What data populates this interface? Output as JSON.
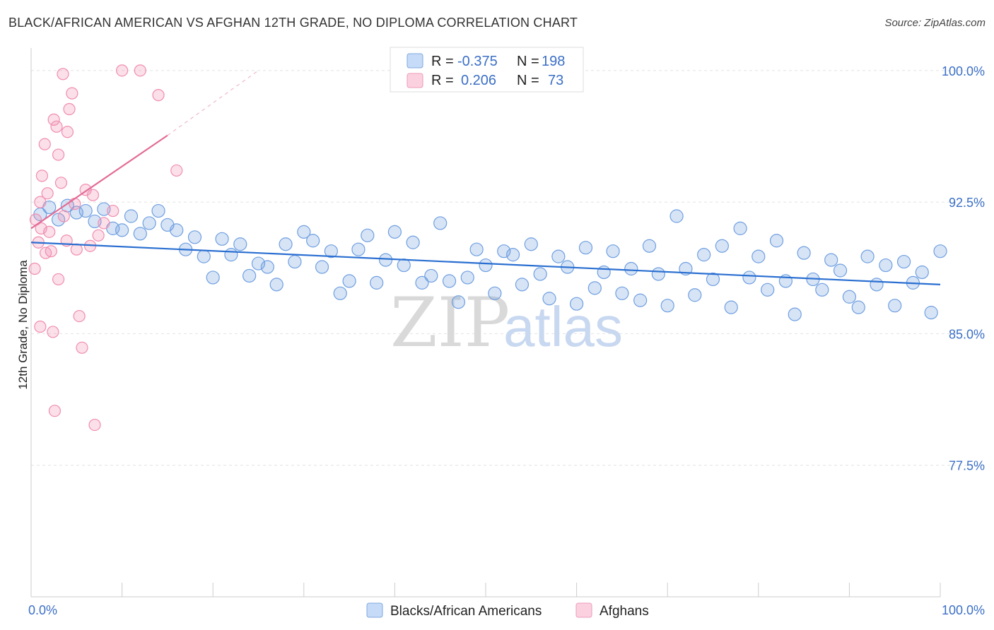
{
  "title": "BLACK/AFRICAN AMERICAN VS AFGHAN 12TH GRADE, NO DIPLOMA CORRELATION CHART",
  "source": "Source: ZipAtlas.com",
  "watermark": {
    "part1": "ZIP",
    "part2": "atlas"
  },
  "colors": {
    "blue": "#6f9fe0",
    "blue_line": "#2a6fd1",
    "pink": "#f08db0",
    "pink_line": "#e36b95"
  },
  "legend": {
    "rows": [
      {
        "r_label": "R =",
        "r_value": "-0.375",
        "n_label": "N =",
        "n_value": "198"
      },
      {
        "r_label": "R =",
        "r_value": "0.206",
        "n_label": "N =",
        "n_value": "73"
      }
    ]
  },
  "bottom_legend": [
    "Blacks/African Americans",
    "Afghans"
  ],
  "chart_data": {
    "type": "scatter",
    "title": "BLACK/AFRICAN AMERICAN VS AFGHAN 12TH GRADE, NO DIPLOMA CORRELATION CHART",
    "xlabel": "",
    "ylabel": "12th Grade, No Diploma",
    "xlim": [
      0,
      100
    ],
    "ylim": [
      70,
      101
    ],
    "x_tick_labels": [
      "0.0%",
      "100.0%"
    ],
    "y_ticks": [
      77.5,
      85.0,
      92.5,
      100.0
    ],
    "y_tick_labels": [
      "77.5%",
      "85.0%",
      "92.5%",
      "100.0%"
    ],
    "series": [
      {
        "name": "Blacks/African Americans",
        "r": -0.375,
        "n": 198,
        "trend": {
          "x": [
            0,
            100
          ],
          "y": [
            90.2,
            87.8
          ]
        },
        "points": [
          [
            1,
            91.8
          ],
          [
            2,
            92.2
          ],
          [
            3,
            91.5
          ],
          [
            4,
            92.3
          ],
          [
            5,
            91.9
          ],
          [
            6,
            92.0
          ],
          [
            7,
            91.4
          ],
          [
            8,
            92.1
          ],
          [
            9,
            91.0
          ],
          [
            10,
            90.9
          ],
          [
            11,
            91.7
          ],
          [
            12,
            90.7
          ],
          [
            13,
            91.3
          ],
          [
            14,
            92.0
          ],
          [
            15,
            91.2
          ],
          [
            16,
            90.9
          ],
          [
            17,
            89.8
          ],
          [
            18,
            90.5
          ],
          [
            19,
            89.4
          ],
          [
            20,
            88.2
          ],
          [
            21,
            90.4
          ],
          [
            22,
            89.5
          ],
          [
            23,
            90.1
          ],
          [
            24,
            88.3
          ],
          [
            25,
            89.0
          ],
          [
            26,
            88.8
          ],
          [
            27,
            87.8
          ],
          [
            28,
            90.1
          ],
          [
            29,
            89.1
          ],
          [
            30,
            90.8
          ],
          [
            31,
            90.3
          ],
          [
            32,
            88.8
          ],
          [
            33,
            89.7
          ],
          [
            34,
            87.3
          ],
          [
            35,
            88.0
          ],
          [
            36,
            89.8
          ],
          [
            37,
            90.6
          ],
          [
            38,
            87.9
          ],
          [
            39,
            89.2
          ],
          [
            40,
            90.8
          ],
          [
            41,
            88.9
          ],
          [
            42,
            90.2
          ],
          [
            43,
            87.9
          ],
          [
            44,
            88.3
          ],
          [
            45,
            91.3
          ],
          [
            46,
            88.0
          ],
          [
            47,
            86.8
          ],
          [
            48,
            88.2
          ],
          [
            49,
            89.8
          ],
          [
            50,
            88.9
          ],
          [
            51,
            87.3
          ],
          [
            52,
            89.7
          ],
          [
            53,
            89.5
          ],
          [
            54,
            87.8
          ],
          [
            55,
            90.1
          ],
          [
            56,
            88.4
          ],
          [
            57,
            87.0
          ],
          [
            58,
            89.4
          ],
          [
            59,
            88.8
          ],
          [
            60,
            86.7
          ],
          [
            61,
            89.9
          ],
          [
            62,
            87.6
          ],
          [
            63,
            88.5
          ],
          [
            64,
            89.7
          ],
          [
            65,
            87.3
          ],
          [
            66,
            88.7
          ],
          [
            67,
            86.9
          ],
          [
            68,
            90.0
          ],
          [
            69,
            88.4
          ],
          [
            70,
            86.6
          ],
          [
            71,
            91.7
          ],
          [
            72,
            88.7
          ],
          [
            73,
            87.2
          ],
          [
            74,
            89.5
          ],
          [
            75,
            88.1
          ],
          [
            76,
            90.0
          ],
          [
            77,
            86.5
          ],
          [
            78,
            91.0
          ],
          [
            79,
            88.2
          ],
          [
            80,
            89.4
          ],
          [
            81,
            87.5
          ],
          [
            82,
            90.3
          ],
          [
            83,
            88.0
          ],
          [
            84,
            86.1
          ],
          [
            85,
            89.6
          ],
          [
            86,
            88.1
          ],
          [
            87,
            87.5
          ],
          [
            88,
            89.2
          ],
          [
            89,
            88.6
          ],
          [
            90,
            87.1
          ],
          [
            91,
            86.5
          ],
          [
            92,
            89.4
          ],
          [
            93,
            87.8
          ],
          [
            94,
            88.9
          ],
          [
            95,
            86.6
          ],
          [
            96,
            89.1
          ],
          [
            97,
            87.9
          ],
          [
            98,
            88.5
          ],
          [
            99,
            86.2
          ],
          [
            100,
            89.7
          ]
        ],
        "pointsDense": true
      },
      {
        "name": "Afghans",
        "r": 0.206,
        "n": 73,
        "trend": {
          "x": [
            0,
            15
          ],
          "y": [
            91.0,
            96.3
          ]
        },
        "trend_extension": {
          "x": [
            15,
            25
          ],
          "y": [
            96.3,
            100.0
          ]
        },
        "points": [
          [
            0.5,
            91.5
          ],
          [
            0.8,
            90.2
          ],
          [
            1.0,
            92.5
          ],
          [
            1.2,
            94.0
          ],
          [
            1.5,
            95.8
          ],
          [
            1.8,
            93.0
          ],
          [
            2.0,
            90.8
          ],
          [
            2.2,
            89.7
          ],
          [
            2.5,
            97.2
          ],
          [
            2.8,
            96.8
          ],
          [
            3.0,
            95.2
          ],
          [
            3.3,
            93.6
          ],
          [
            3.6,
            91.7
          ],
          [
            3.9,
            90.3
          ],
          [
            4.2,
            97.8
          ],
          [
            4.5,
            98.7
          ],
          [
            4.8,
            92.4
          ],
          [
            5.0,
            89.8
          ],
          [
            5.3,
            86.0
          ],
          [
            5.6,
            84.2
          ],
          [
            6.0,
            93.2
          ],
          [
            6.5,
            90.0
          ],
          [
            7.0,
            79.8
          ],
          [
            8.0,
            91.3
          ],
          [
            10.0,
            100.0
          ],
          [
            12.0,
            100.0
          ],
          [
            14.0,
            98.6
          ],
          [
            16.0,
            94.3
          ],
          [
            2.6,
            80.6
          ],
          [
            1.0,
            85.4
          ],
          [
            2.4,
            85.1
          ],
          [
            3.0,
            88.1
          ],
          [
            1.6,
            89.6
          ],
          [
            0.4,
            88.7
          ],
          [
            4.0,
            96.5
          ],
          [
            3.5,
            99.8
          ],
          [
            6.8,
            92.9
          ],
          [
            7.4,
            90.6
          ],
          [
            9.0,
            92.0
          ],
          [
            1.1,
            91.0
          ]
        ]
      }
    ]
  }
}
